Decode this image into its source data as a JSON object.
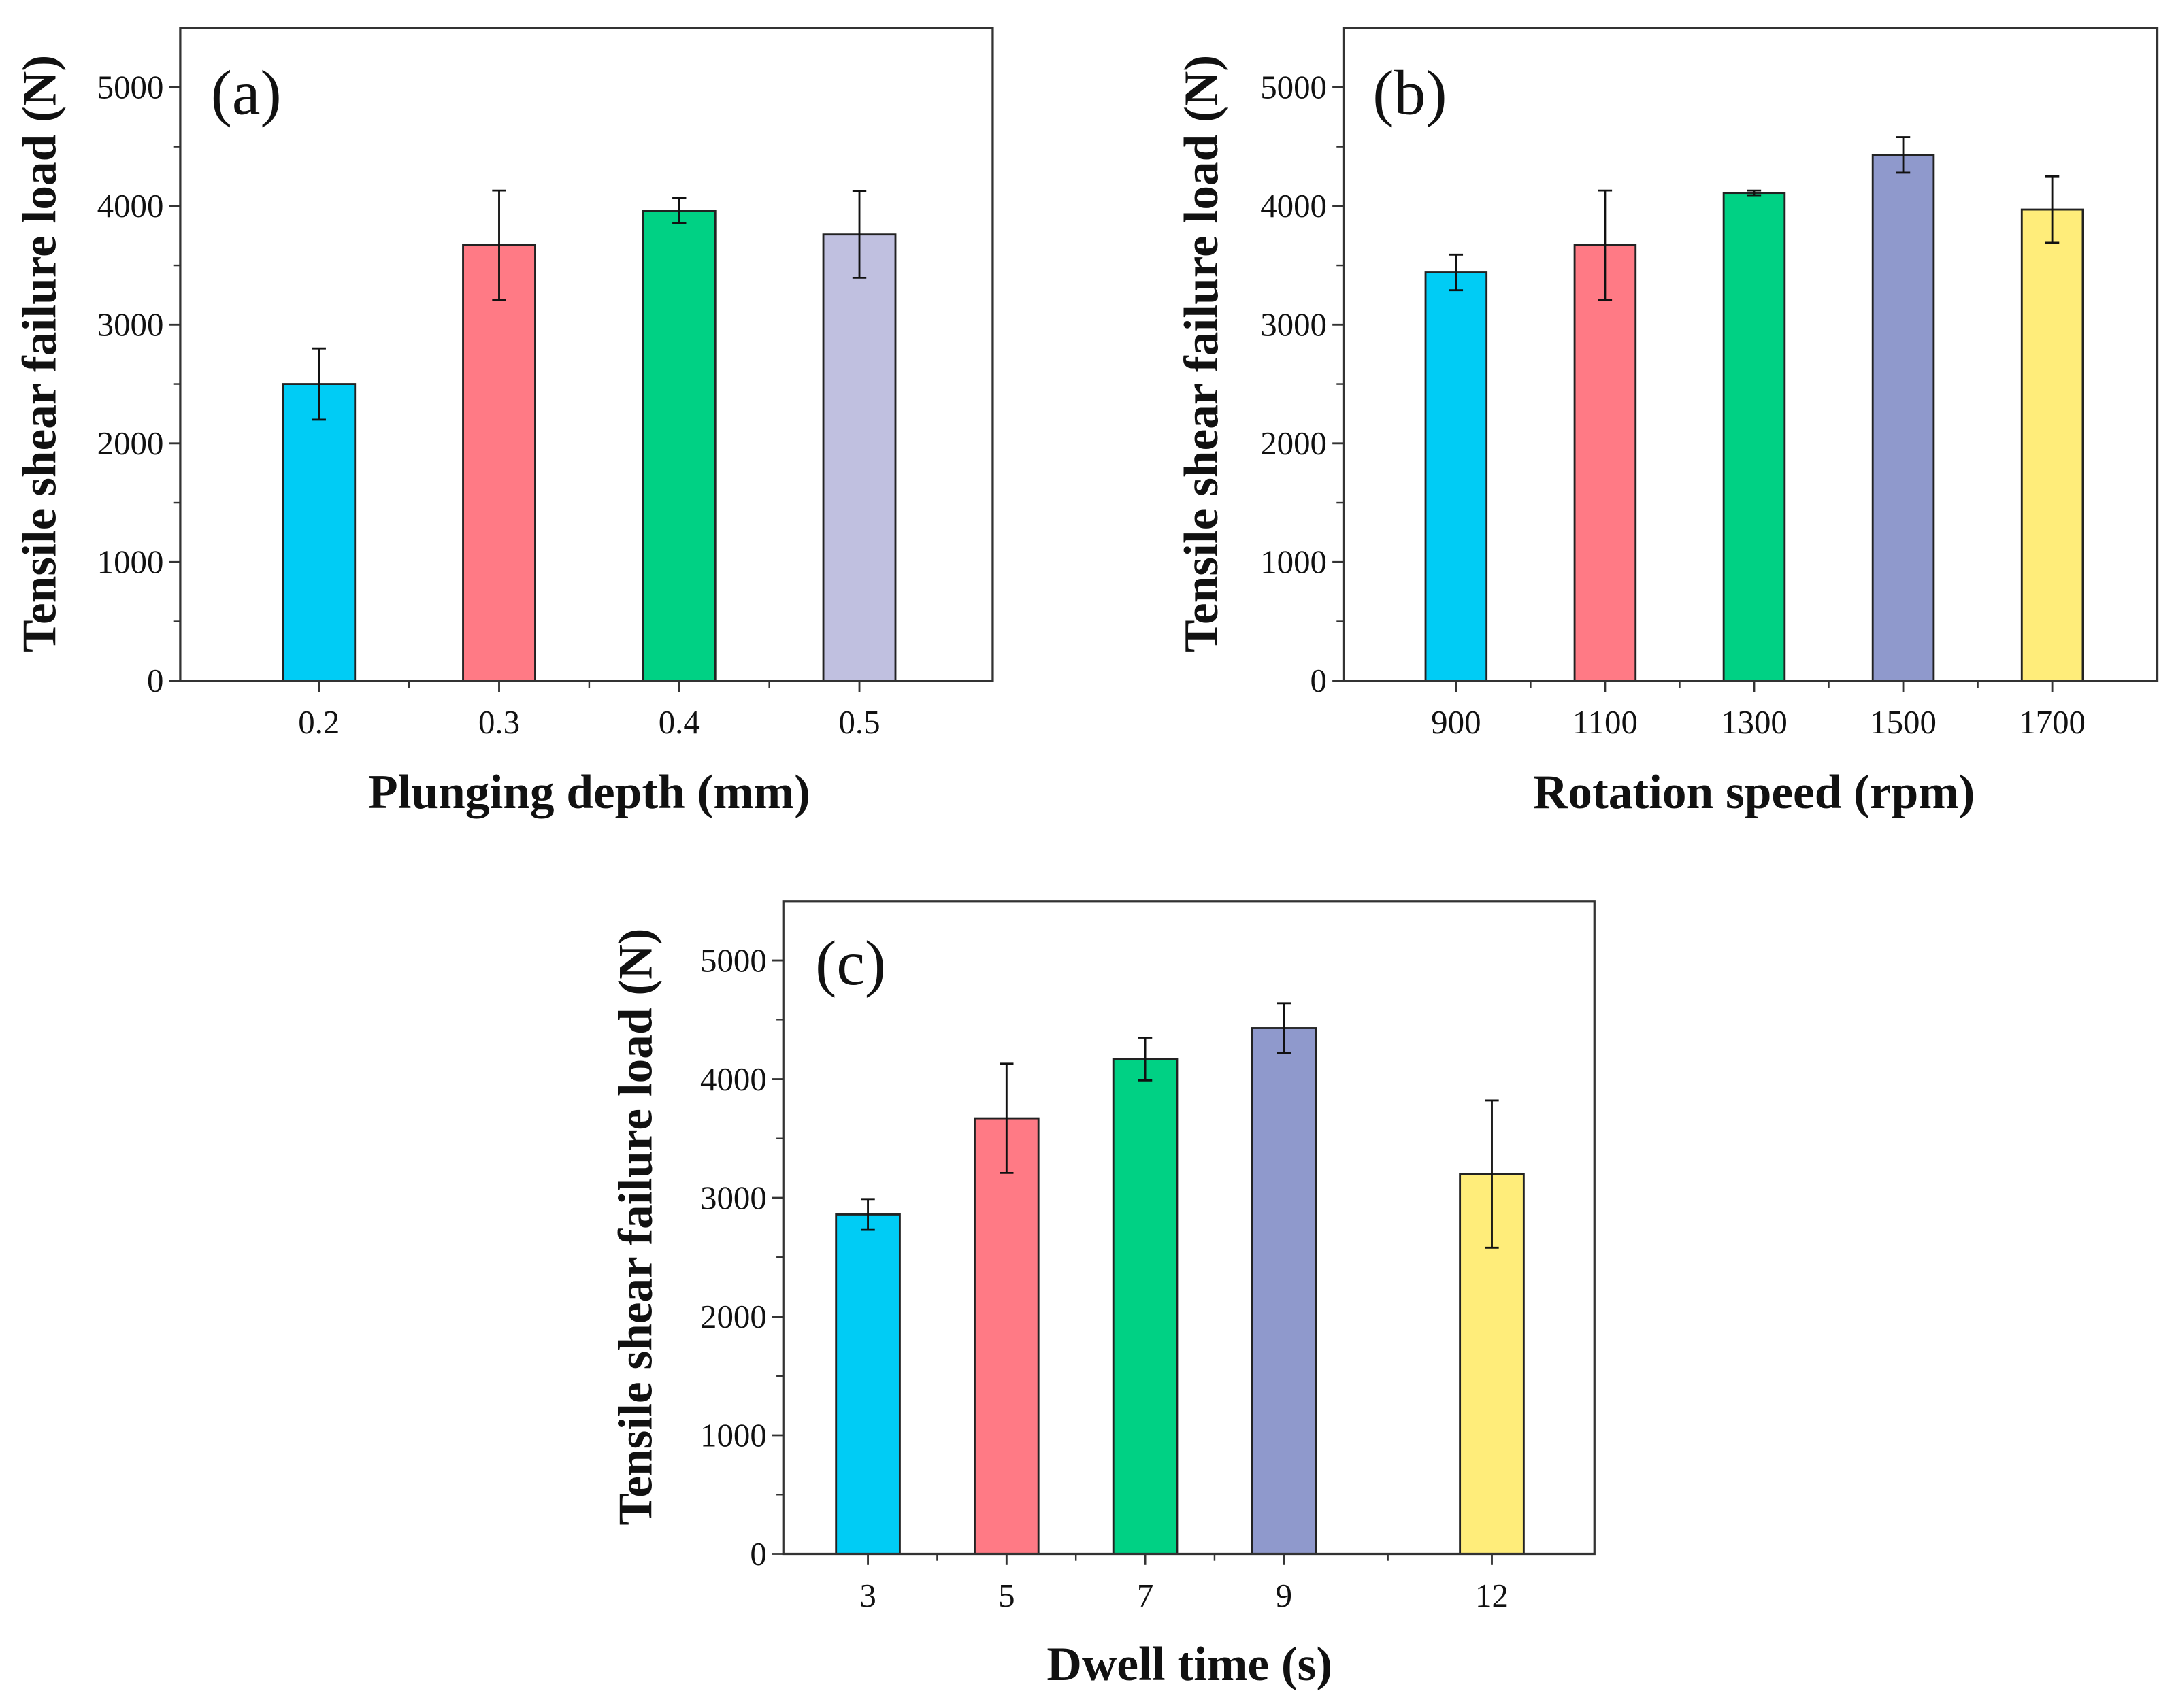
{
  "chart_data": [
    {
      "type": "bar",
      "panel_label": "(a)",
      "xlabel": "Plunging depth (mm)",
      "ylabel": "Tensile shear failure load (N)",
      "categories": [
        "0.2",
        "0.3",
        "0.4",
        "0.5"
      ],
      "x": [
        0.2,
        0.3,
        0.4,
        0.5
      ],
      "values": [
        2500,
        3670,
        3960,
        3760
      ],
      "errors": [
        300,
        460,
        105,
        365
      ],
      "colors": [
        "#00CCF5",
        "#FF7A85",
        "#00D184",
        "#C0C0E0"
      ],
      "xlim": [
        0.123,
        0.574
      ],
      "ylim": [
        0,
        5500
      ],
      "yticks": [
        "0",
        "1000",
        "2000",
        "3000",
        "4000",
        "5000"
      ],
      "grid": false
    },
    {
      "type": "bar",
      "panel_label": "(b)",
      "xlabel": "Rotation speed (rpm)",
      "ylabel": "Tensile shear failure load (N)",
      "categories": [
        "900",
        "1100",
        "1300",
        "1500",
        "1700"
      ],
      "x": [
        900,
        1100,
        1300,
        1500,
        1700
      ],
      "values": [
        3440,
        3670,
        4110,
        4430,
        3970
      ],
      "errors": [
        150,
        460,
        20,
        150,
        280
      ],
      "colors": [
        "#00CCF5",
        "#FF7A85",
        "#00D184",
        "#8F99CC",
        "#FFED7A"
      ],
      "xlim": [
        749,
        1841
      ],
      "ylim": [
        0,
        5500
      ],
      "yticks": [
        "0",
        "1000",
        "2000",
        "3000",
        "4000",
        "5000"
      ],
      "grid": false
    },
    {
      "type": "bar",
      "panel_label": "(c)",
      "xlabel": "Dwell time (s)",
      "ylabel": "Tensile shear failure load (N)",
      "categories": [
        "3",
        "5",
        "7",
        "9",
        "12"
      ],
      "x": [
        3,
        5,
        7,
        9,
        12
      ],
      "values": [
        2860,
        3670,
        4170,
        4430,
        3200
      ],
      "errors": [
        130,
        460,
        180,
        210,
        620
      ],
      "colors": [
        "#00CCF5",
        "#FF7A85",
        "#00D184",
        "#8F99CC",
        "#FFED7A"
      ],
      "xlim": [
        1.78,
        13.48
      ],
      "ylim": [
        0,
        5500
      ],
      "yticks": [
        "0",
        "1000",
        "2000",
        "3000",
        "4000",
        "5000"
      ],
      "grid": false
    }
  ]
}
